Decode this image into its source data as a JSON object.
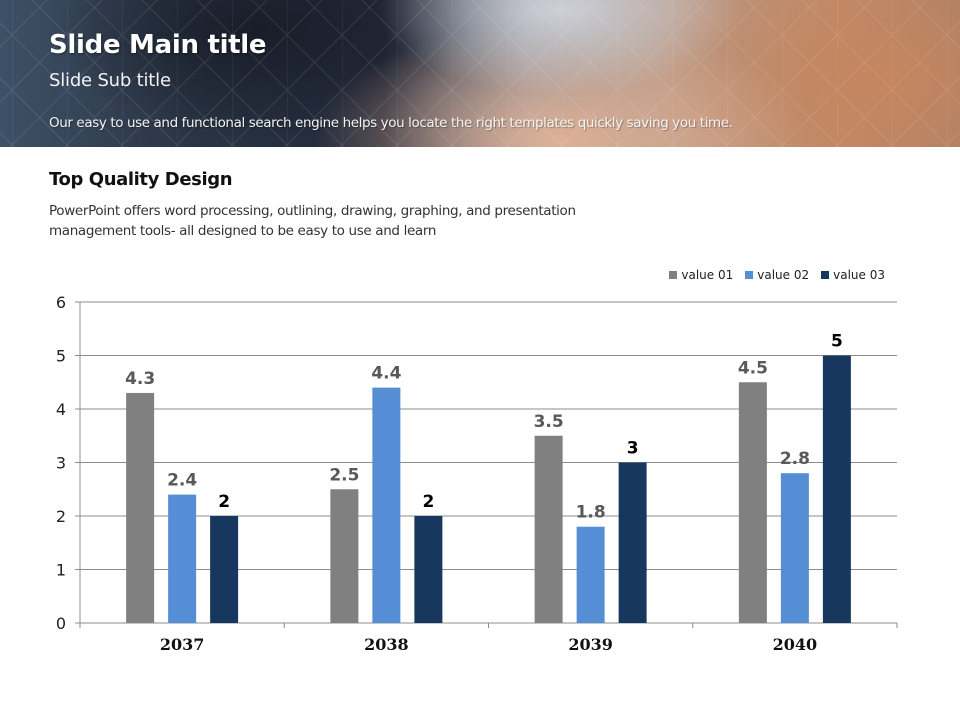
{
  "header": {
    "title": "Slide Main title",
    "subtitle": "Slide Sub title",
    "description": "Our easy to use and functional search engine helps you locate the right templates quickly saving you time."
  },
  "section": {
    "title": "Top Quality Design",
    "body_line1": "PowerPoint offers word processing, outlining, drawing, graphing, and presentation",
    "body_line2": "management tools- all designed to be easy to use and learn"
  },
  "chart_data": {
    "type": "bar",
    "title": "",
    "xlabel": "",
    "ylabel": "",
    "categories": [
      "2037",
      "2038",
      "2039",
      "2040"
    ],
    "series": [
      {
        "name": "value 01",
        "color": "#808080",
        "label_color": "#595959",
        "values": [
          4.3,
          2.5,
          3.5,
          4.5
        ]
      },
      {
        "name": "value 02",
        "color": "#558ed5",
        "label_color": "#595959",
        "values": [
          2.4,
          4.4,
          1.8,
          2.8
        ]
      },
      {
        "name": "value 03",
        "color": "#17375e",
        "label_color": "#000000",
        "values": [
          2,
          2,
          3,
          5
        ]
      }
    ],
    "ylim": [
      0,
      6
    ],
    "yticks": [
      0,
      1,
      2,
      3,
      4,
      5,
      6
    ],
    "grid": true,
    "legend": "top-right",
    "data_labels": true
  }
}
